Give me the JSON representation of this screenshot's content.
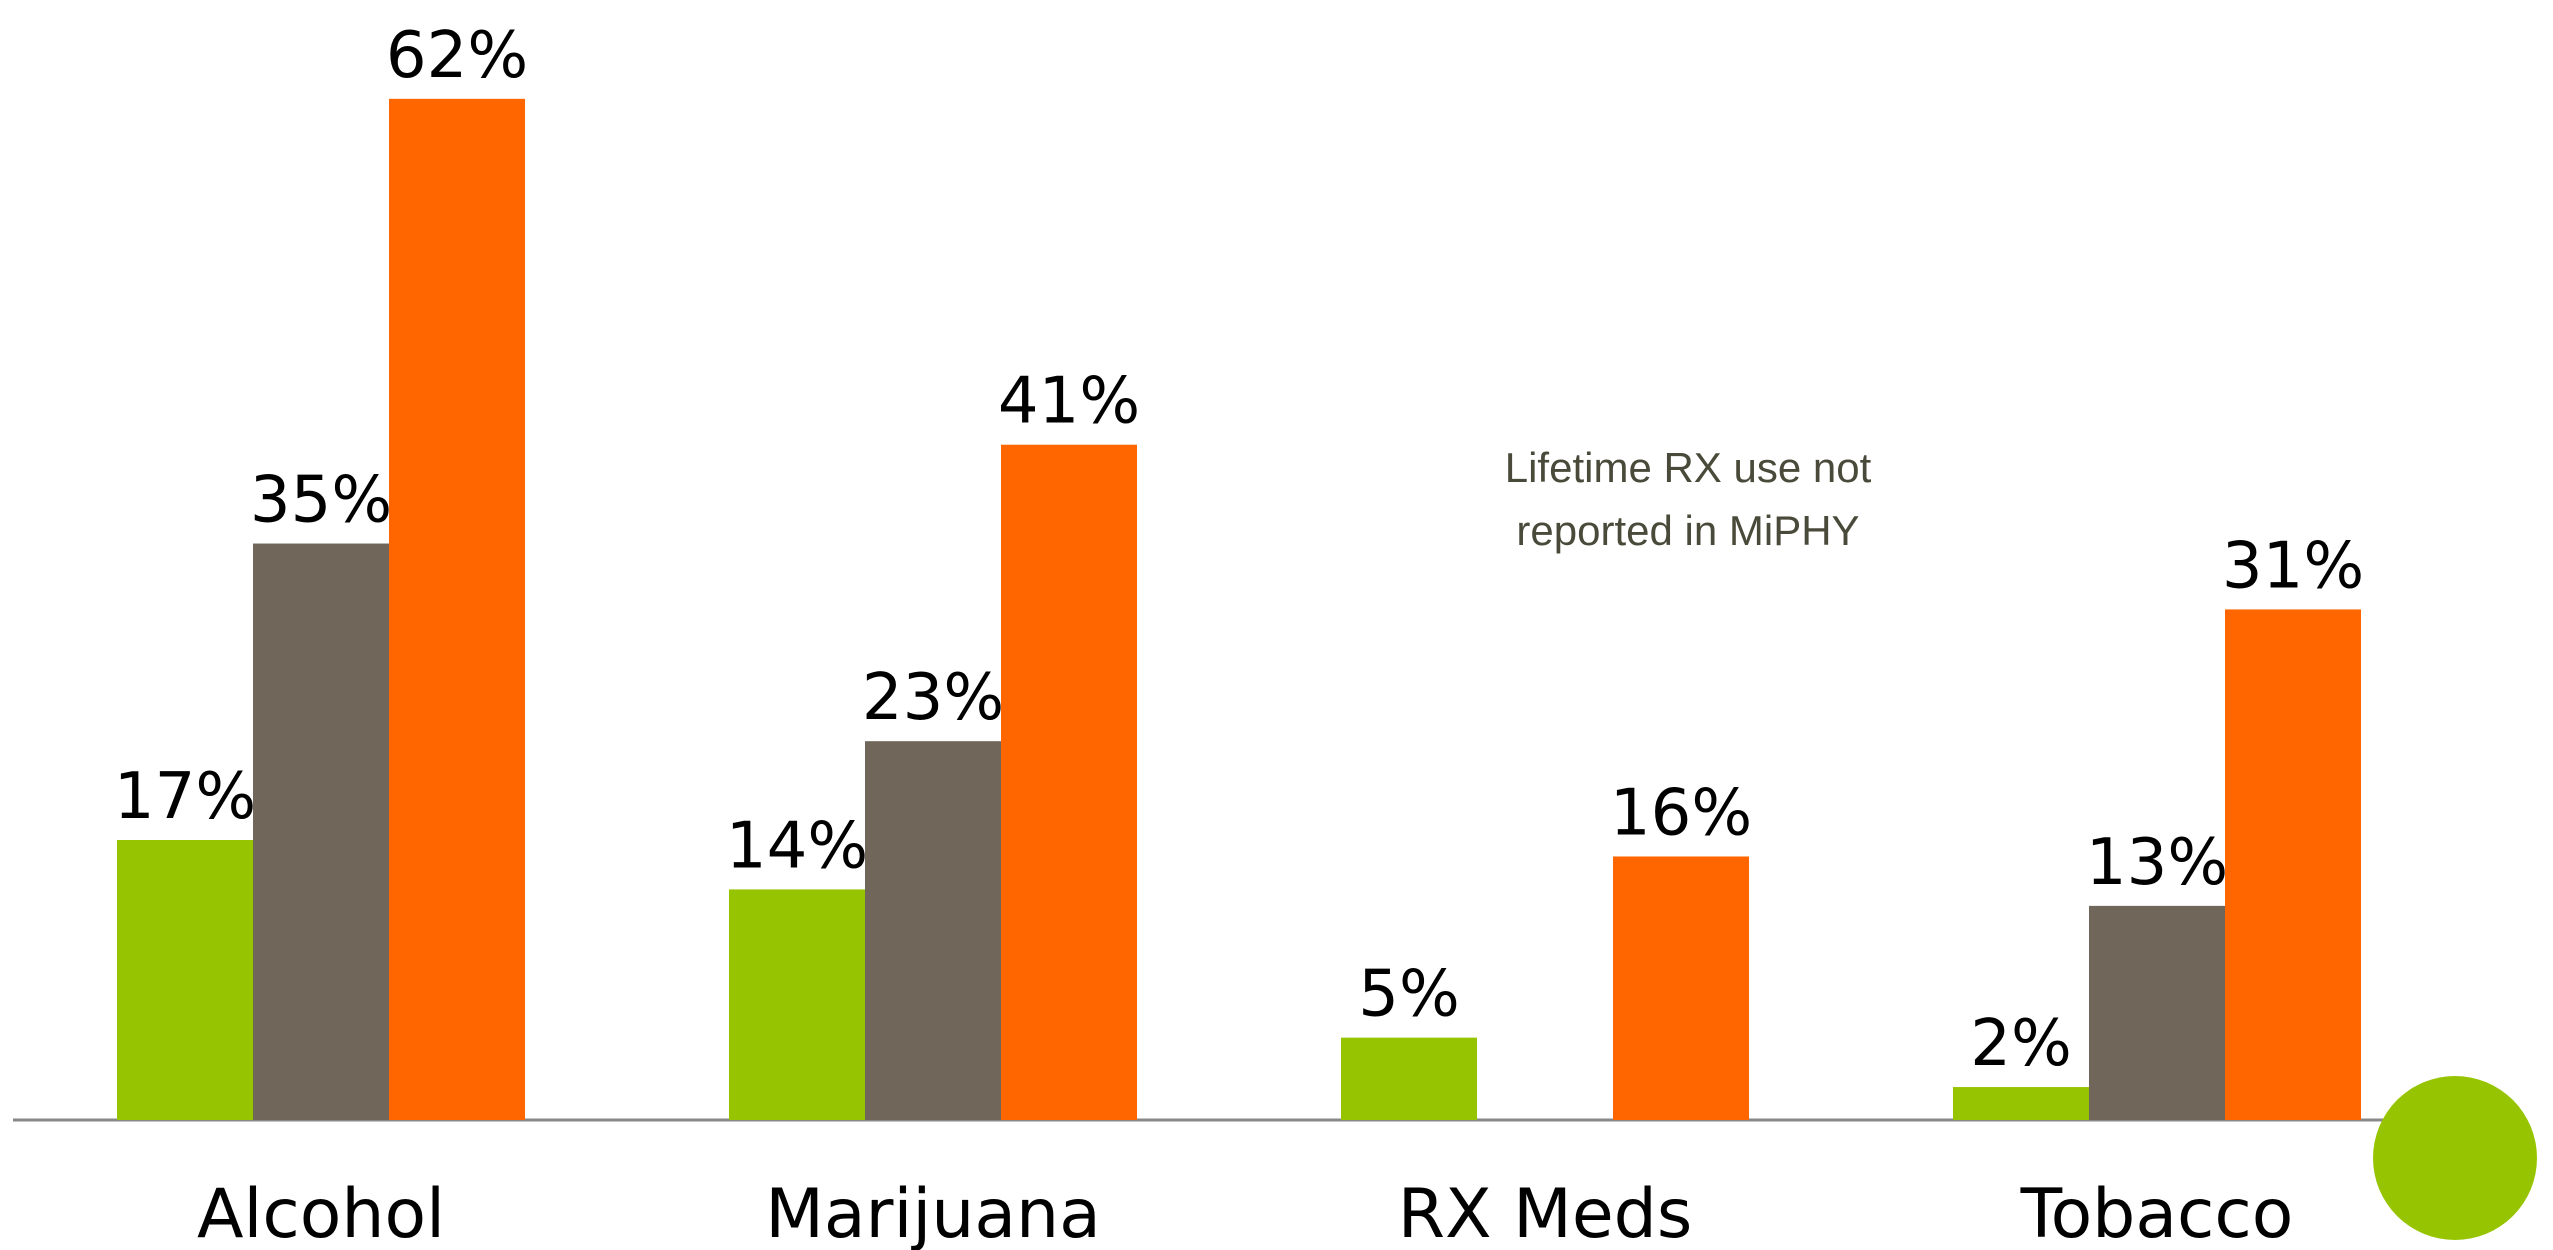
{
  "chart_data": {
    "type": "bar",
    "categories": [
      "Alcohol",
      "Marijuana",
      "RX Meds",
      "Tobacco"
    ],
    "series": [
      {
        "color": "#96c400",
        "values": [
          17,
          14,
          5,
          2
        ],
        "value_labels": [
          "17%",
          "14%",
          "5%",
          "2%"
        ]
      },
      {
        "color": "#70675a",
        "values": [
          35,
          23,
          null,
          13
        ],
        "value_labels": [
          "35%",
          "23%",
          null,
          "13%"
        ]
      },
      {
        "color": "#ff6600",
        "values": [
          62,
          41,
          16,
          31
        ],
        "value_labels": [
          "62%",
          "41%",
          "16%",
          "31%"
        ]
      }
    ],
    "annotation": [
      "Lifetime RX use not",
      "reported in MiPHY"
    ],
    "ylim": [
      0,
      68
    ]
  }
}
